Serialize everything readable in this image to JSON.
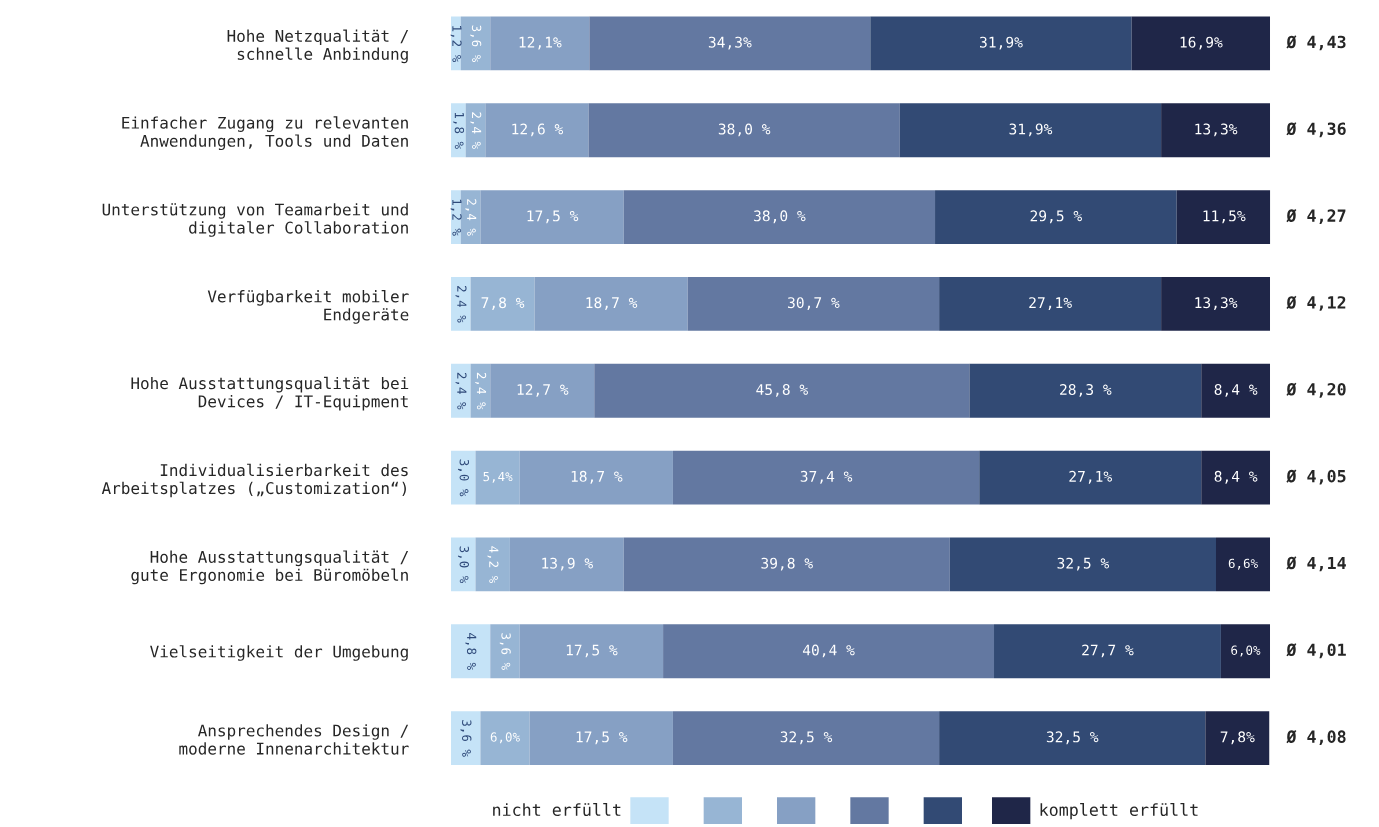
{
  "chart_data": {
    "type": "bar",
    "orientation": "horizontal",
    "stacked": true,
    "tick_labels": "y",
    "grid": false,
    "legend": "bottom",
    "xlim": [
      0,
      100
    ],
    "categories": [
      "Hohe Netzqualität /\nschnelle Anbindung",
      "Einfacher Zugang zu relevanten\nAnwendungen, Tools und Daten",
      "Unterstützung von Teamarbeit und\ndigitaler Collaboration",
      "Verfügbarkeit mobiler\nEndgeräte",
      "Hohe Ausstattungsqualität bei\nDevices / IT-Equipment",
      "Individualisierbarkeit des\nArbeitsplatzes („Customization“)",
      "Hohe Ausstattungsqualität /\ngute Ergonomie bei Büromöbeln",
      "Vielseitigkeit der Umgebung",
      "Ansprechendes Design /\nmoderne Innenarchitektur"
    ],
    "series": [
      {
        "name": "nicht erfüllt",
        "color": "#c5e3f7",
        "values": [
          1.2,
          1.8,
          1.2,
          2.4,
          2.4,
          3.0,
          3.0,
          4.8,
          3.6
        ],
        "value_labels": [
          "1,2 %",
          "1,8 %",
          "1,2 %",
          "2,4 %",
          "2,4 %",
          "3,0 %",
          "3,0 %",
          "4,8 %",
          "3,6 %"
        ]
      },
      {
        "color": "#97b5d4",
        "values": [
          3.6,
          2.4,
          2.4,
          7.8,
          2.4,
          5.4,
          4.2,
          3.6,
          6.0
        ],
        "value_labels": [
          "3,6 %",
          "2,4 %",
          "2,4 %",
          "7,8 %",
          "2,4 %",
          "5,4%",
          "4,2 %",
          "3,6 %",
          "6,0%"
        ]
      },
      {
        "color": "#86a0c4",
        "values": [
          12.1,
          12.6,
          17.5,
          18.7,
          12.7,
          18.7,
          13.9,
          17.5,
          17.5
        ],
        "value_labels": [
          "12,1%",
          "12,6 %",
          "17,5 %",
          "18,7 %",
          "12,7 %",
          "18,7 %",
          "13,9 %",
          "17,5 %",
          "17,5 %"
        ]
      },
      {
        "color": "#6378a1",
        "values": [
          34.3,
          38.0,
          38.0,
          30.7,
          45.8,
          37.4,
          39.8,
          40.4,
          32.5
        ],
        "value_labels": [
          "34,3%",
          "38,0 %",
          "38,0 %",
          "30,7 %",
          "45,8 %",
          "37,4 %",
          "39,8 %",
          "40,4 %",
          "32,5 %"
        ]
      },
      {
        "color": "#324a74",
        "values": [
          31.9,
          31.9,
          29.5,
          27.1,
          28.3,
          27.1,
          32.5,
          27.7,
          32.5
        ],
        "value_labels": [
          "31,9%",
          "31,9%",
          "29,5 %",
          "27,1%",
          "28,3 %",
          "27,1%",
          "32,5 %",
          "27,7 %",
          "32,5 %"
        ]
      },
      {
        "name": "komplett erfüllt",
        "color": "#1f2648",
        "values": [
          16.9,
          13.3,
          11.5,
          13.3,
          8.4,
          8.4,
          6.6,
          6.0,
          7.8
        ],
        "value_labels": [
          "16,9%",
          "13,3%",
          "11,5%",
          "13,3%",
          "8,4 %",
          "8,4 %",
          "6,6%",
          "6,0%",
          "7,8%"
        ]
      }
    ],
    "annotations": [
      "Ø 4,43",
      "Ø 4,36",
      "Ø 4,27",
      "Ø 4,12",
      "Ø 4,20",
      "Ø 4,05",
      "Ø 4,14",
      "Ø 4,01",
      "Ø 4,08"
    ]
  }
}
